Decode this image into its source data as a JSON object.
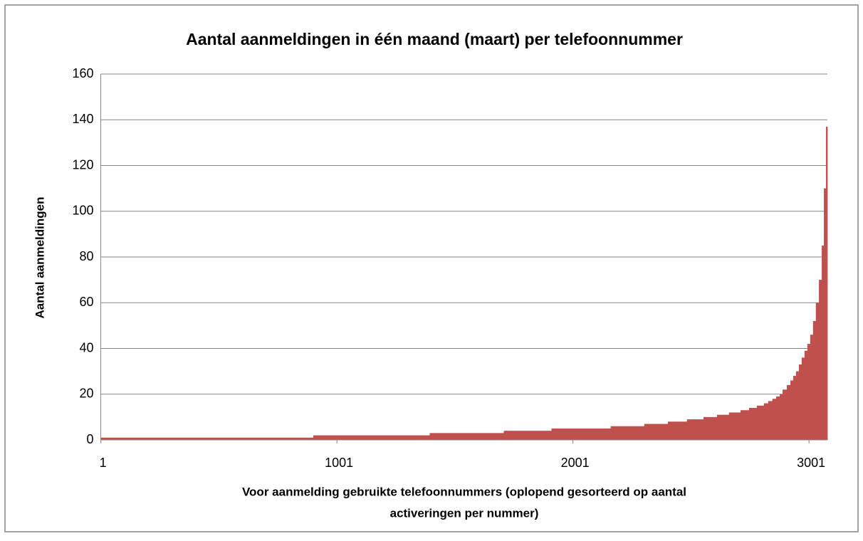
{
  "chart_data": {
    "type": "histogram",
    "title": "Aantal aanmeldingen in één maand (maart) per telefoonnummer",
    "xlabel": [
      "Voor aanmelding gebruikte telefoonnummers (oplopend gesorteerd op aantal",
      "activeringen per nummer)"
    ],
    "ylabel": "Aantal aanmeldingen",
    "color": "#c0504d",
    "bins": [
      0.5,
      901,
      1394,
      1708,
      1910,
      2161,
      2303,
      2403,
      2484,
      2554,
      2611,
      2662,
      2711,
      2747,
      2780,
      2810,
      2828,
      2846,
      2862,
      2877,
      2889,
      2907,
      2922,
      2934,
      2946,
      2958,
      2970,
      2982,
      2994,
      3006,
      3018,
      3030,
      3043,
      3055,
      3064,
      3073,
      3079
    ],
    "values": [
      1,
      2,
      3,
      4,
      5,
      6,
      7,
      8,
      9,
      10,
      11,
      12,
      13,
      14,
      15,
      16,
      17,
      18,
      19,
      20,
      22,
      24,
      26,
      28,
      30,
      33,
      36,
      39,
      42,
      46,
      52,
      60,
      70,
      85,
      110,
      137
    ],
    "xlim": [
      0.5,
      3079
    ],
    "xticks": [
      1,
      1001,
      2001,
      3001
    ],
    "ylim": [
      0,
      160
    ],
    "yticks": [
      0,
      20,
      40,
      60,
      80,
      100,
      120,
      140,
      160
    ],
    "grid": true
  }
}
